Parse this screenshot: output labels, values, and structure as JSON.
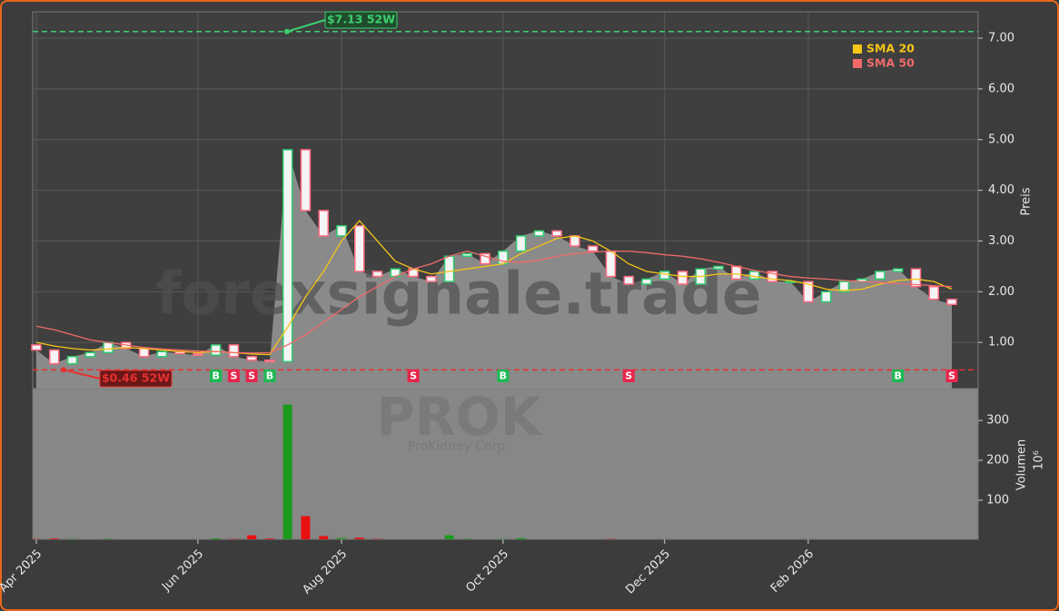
{
  "chart_data": {
    "type": "candlestick",
    "watermark": "forexsignale.trade",
    "symbol": "PROK",
    "company": "ProKidney Corp.",
    "ylabel": "Preis",
    "categories": [
      "Apr 2025",
      null,
      null,
      null,
      null,
      null,
      null,
      null,
      null,
      "Jun 2025",
      null,
      null,
      null,
      null,
      null,
      null,
      null,
      "Aug 2025",
      null,
      null,
      null,
      null,
      null,
      null,
      null,
      null,
      "Oct 2025",
      null,
      null,
      null,
      null,
      null,
      null,
      null,
      null,
      "Dec 2025",
      null,
      null,
      null,
      null,
      null,
      null,
      null,
      "Feb 2026",
      null,
      null,
      null,
      null,
      null,
      null,
      null,
      null
    ],
    "open": [
      0.95,
      0.85,
      0.58,
      0.72,
      0.8,
      1.0,
      0.88,
      0.72,
      0.82,
      0.78,
      0.75,
      0.95,
      0.72,
      0.65,
      0.62,
      4.8,
      3.6,
      3.1,
      3.3,
      2.4,
      2.3,
      2.45,
      2.3,
      2.2,
      2.7,
      2.75,
      2.55,
      2.8,
      3.1,
      3.2,
      3.1,
      2.9,
      2.8,
      2.3,
      2.15,
      2.25,
      2.4,
      2.15,
      2.45,
      2.5,
      2.25,
      2.4,
      2.2,
      2.2,
      1.8,
      2.0,
      2.2,
      2.25,
      2.4,
      2.45,
      2.1,
      1.85
    ],
    "high": {
      "value": 7.13,
      "label": "$7.13 52W",
      "color": "#3ccf6e"
    },
    "low": {
      "value": 0.46,
      "label": "$0.46 52W",
      "color": "#e83030"
    },
    "close": [
      0.85,
      0.58,
      0.72,
      0.8,
      1.0,
      0.88,
      0.72,
      0.82,
      0.78,
      0.75,
      0.95,
      0.72,
      0.65,
      0.62,
      4.8,
      3.6,
      3.1,
      3.3,
      2.4,
      2.3,
      2.45,
      2.3,
      2.2,
      2.7,
      2.75,
      2.55,
      2.8,
      3.1,
      3.2,
      3.1,
      2.9,
      2.8,
      2.3,
      2.15,
      2.25,
      2.4,
      2.15,
      2.45,
      2.5,
      2.25,
      2.4,
      2.2,
      2.2,
      1.8,
      2.0,
      2.2,
      2.25,
      2.4,
      2.45,
      2.1,
      1.85,
      1.75
    ],
    "up_color": "#2ecc71",
    "down_color": "#ff6b81",
    "series": [
      {
        "name": "SMA 20",
        "color": "#f5c518",
        "values": [
          1.0,
          0.93,
          0.88,
          0.85,
          0.87,
          0.9,
          0.88,
          0.85,
          0.82,
          0.8,
          0.82,
          0.8,
          0.77,
          0.76,
          1.3,
          1.9,
          2.4,
          3.0,
          3.4,
          3.0,
          2.6,
          2.45,
          2.35,
          2.4,
          2.45,
          2.5,
          2.55,
          2.75,
          2.9,
          3.05,
          3.1,
          3.0,
          2.8,
          2.55,
          2.4,
          2.35,
          2.3,
          2.3,
          2.35,
          2.35,
          2.3,
          2.25,
          2.22,
          2.15,
          2.05,
          2.02,
          2.05,
          2.15,
          2.22,
          2.25,
          2.2,
          2.05
        ]
      },
      {
        "name": "SMA 50",
        "color": "#f06a6a",
        "values": [
          1.32,
          1.25,
          1.15,
          1.05,
          1.0,
          0.95,
          0.9,
          0.87,
          0.85,
          0.83,
          0.82,
          0.8,
          0.79,
          0.8,
          0.95,
          1.15,
          1.4,
          1.65,
          1.9,
          2.1,
          2.3,
          2.45,
          2.55,
          2.7,
          2.8,
          2.7,
          2.6,
          2.58,
          2.62,
          2.7,
          2.75,
          2.78,
          2.8,
          2.8,
          2.77,
          2.73,
          2.7,
          2.65,
          2.58,
          2.5,
          2.42,
          2.36,
          2.3,
          2.27,
          2.25,
          2.22,
          2.2,
          2.18,
          2.16,
          2.14,
          2.12,
          2.1
        ]
      }
    ],
    "signals": [
      null,
      null,
      null,
      null,
      null,
      null,
      null,
      null,
      null,
      null,
      "B",
      "S",
      "S",
      "B",
      null,
      null,
      null,
      null,
      null,
      null,
      null,
      "S",
      null,
      null,
      null,
      null,
      "B",
      null,
      null,
      null,
      null,
      null,
      null,
      "S",
      null,
      null,
      null,
      null,
      null,
      null,
      null,
      null,
      null,
      null,
      null,
      null,
      null,
      null,
      "B",
      null,
      null,
      "S"
    ],
    "buy_color": "#1db954",
    "sell_color": "#e8254b",
    "ylim": [
      0.09,
      7.52
    ],
    "yticks": [
      {
        "value": 1,
        "label": "1.00"
      },
      {
        "value": 2,
        "label": "2.00"
      },
      {
        "value": 3,
        "label": "3.00"
      },
      {
        "value": 4,
        "label": "4.00"
      },
      {
        "value": 5,
        "label": "5.00"
      },
      {
        "value": 6,
        "label": "6.00"
      },
      {
        "value": 7,
        "label": "7.00"
      }
    ],
    "grid": true,
    "legend": "upper right",
    "volume": {
      "label": "Volumen",
      "multiplier": "10⁶",
      "up_color": "#1a9a1a",
      "down_color": "#e81010",
      "values": [
        3,
        4,
        3,
        2,
        3,
        2,
        2,
        2,
        2,
        2,
        4,
        3,
        12,
        4,
        340,
        60,
        10,
        5,
        6,
        3,
        2,
        2,
        2,
        12,
        3,
        2,
        3,
        5,
        2,
        2,
        2,
        2,
        3,
        2,
        1,
        1,
        1,
        1,
        2,
        1,
        1,
        1,
        1,
        1,
        1,
        1,
        1,
        1,
        1,
        1,
        1,
        1
      ],
      "ylim": [
        2,
        380
      ],
      "yticks": [
        100,
        200,
        300
      ]
    }
  }
}
